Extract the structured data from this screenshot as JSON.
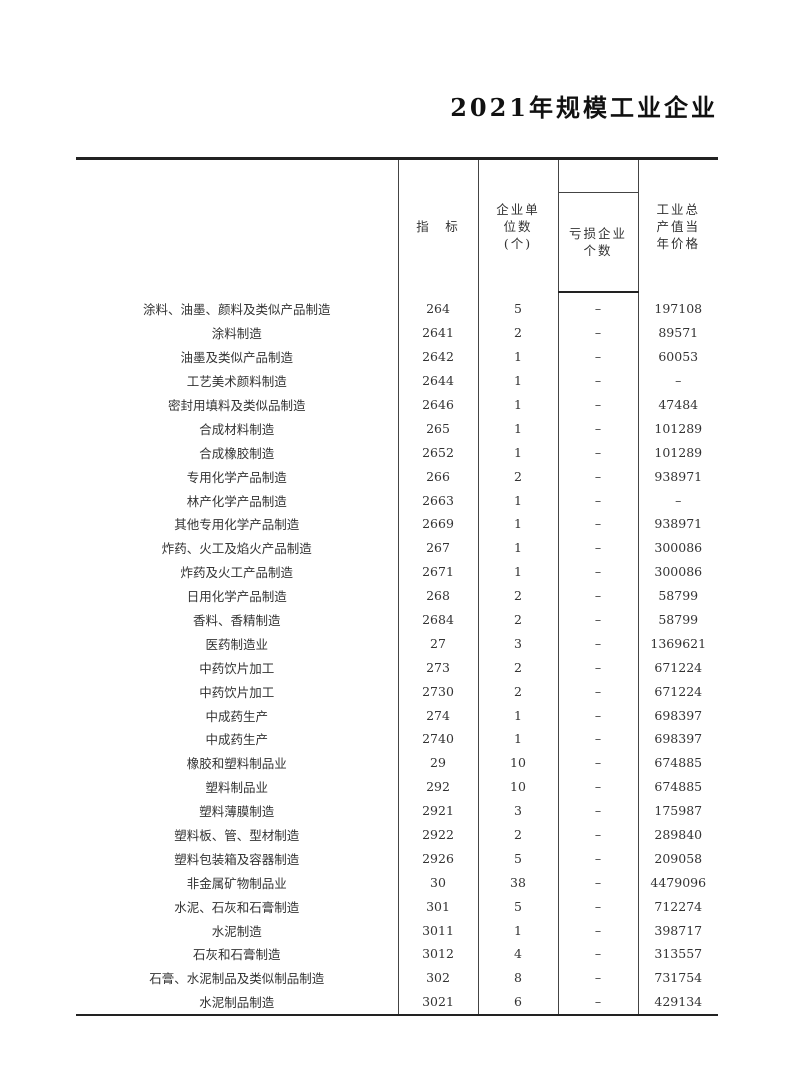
{
  "title": "2021年规模工业企业",
  "headers": {
    "name": "",
    "code": "指　标",
    "units": "企业单位数(个)",
    "loss_group": "",
    "loss": "亏损企业个数",
    "output": "工业总产值当年价格"
  },
  "rows": [
    {
      "name": "涂料、油墨、颜料及类似产品制造",
      "code": "264",
      "units": "5",
      "loss": "–",
      "output": "197108"
    },
    {
      "name": "涂料制造",
      "code": "2641",
      "units": "2",
      "loss": "–",
      "output": "89571"
    },
    {
      "name": "油墨及类似产品制造",
      "code": "2642",
      "units": "1",
      "loss": "–",
      "output": "60053"
    },
    {
      "name": "工艺美术颜料制造",
      "code": "2644",
      "units": "1",
      "loss": "–",
      "output": "–"
    },
    {
      "name": "密封用填料及类似品制造",
      "code": "2646",
      "units": "1",
      "loss": "–",
      "output": "47484"
    },
    {
      "name": "合成材料制造",
      "code": "265",
      "units": "1",
      "loss": "–",
      "output": "101289"
    },
    {
      "name": "合成橡胶制造",
      "code": "2652",
      "units": "1",
      "loss": "–",
      "output": "101289"
    },
    {
      "name": "专用化学产品制造",
      "code": "266",
      "units": "2",
      "loss": "–",
      "output": "938971"
    },
    {
      "name": "林产化学产品制造",
      "code": "2663",
      "units": "1",
      "loss": "–",
      "output": "–"
    },
    {
      "name": "其他专用化学产品制造",
      "code": "2669",
      "units": "1",
      "loss": "–",
      "output": "938971"
    },
    {
      "name": "炸药、火工及焰火产品制造",
      "code": "267",
      "units": "1",
      "loss": "–",
      "output": "300086"
    },
    {
      "name": "炸药及火工产品制造",
      "code": "2671",
      "units": "1",
      "loss": "–",
      "output": "300086"
    },
    {
      "name": "日用化学产品制造",
      "code": "268",
      "units": "2",
      "loss": "–",
      "output": "58799"
    },
    {
      "name": "香料、香精制造",
      "code": "2684",
      "units": "2",
      "loss": "–",
      "output": "58799"
    },
    {
      "name": "医药制造业",
      "code": "27",
      "units": "3",
      "loss": "–",
      "output": "1369621"
    },
    {
      "name": "中药饮片加工",
      "code": "273",
      "units": "2",
      "loss": "–",
      "output": "671224"
    },
    {
      "name": "中药饮片加工",
      "code": "2730",
      "units": "2",
      "loss": "–",
      "output": "671224"
    },
    {
      "name": "中成药生产",
      "code": "274",
      "units": "1",
      "loss": "–",
      "output": "698397"
    },
    {
      "name": "中成药生产",
      "code": "2740",
      "units": "1",
      "loss": "–",
      "output": "698397"
    },
    {
      "name": "橡胶和塑料制品业",
      "code": "29",
      "units": "10",
      "loss": "–",
      "output": "674885"
    },
    {
      "name": "塑料制品业",
      "code": "292",
      "units": "10",
      "loss": "–",
      "output": "674885"
    },
    {
      "name": "塑料薄膜制造",
      "code": "2921",
      "units": "3",
      "loss": "–",
      "output": "175987"
    },
    {
      "name": "塑料板、管、型材制造",
      "code": "2922",
      "units": "2",
      "loss": "–",
      "output": "289840"
    },
    {
      "name": "塑料包装箱及容器制造",
      "code": "2926",
      "units": "5",
      "loss": "–",
      "output": "209058"
    },
    {
      "name": "非金属矿物制品业",
      "code": "30",
      "units": "38",
      "loss": "–",
      "output": "4479096"
    },
    {
      "name": "水泥、石灰和石膏制造",
      "code": "301",
      "units": "5",
      "loss": "–",
      "output": "712274"
    },
    {
      "name": "水泥制造",
      "code": "3011",
      "units": "1",
      "loss": "–",
      "output": "398717"
    },
    {
      "name": "石灰和石膏制造",
      "code": "3012",
      "units": "4",
      "loss": "–",
      "output": "313557"
    },
    {
      "name": "石膏、水泥制品及类似制品制造",
      "code": "302",
      "units": "8",
      "loss": "–",
      "output": "731754"
    },
    {
      "name": "水泥制品制造",
      "code": "3021",
      "units": "6",
      "loss": "–",
      "output": "429134"
    }
  ]
}
